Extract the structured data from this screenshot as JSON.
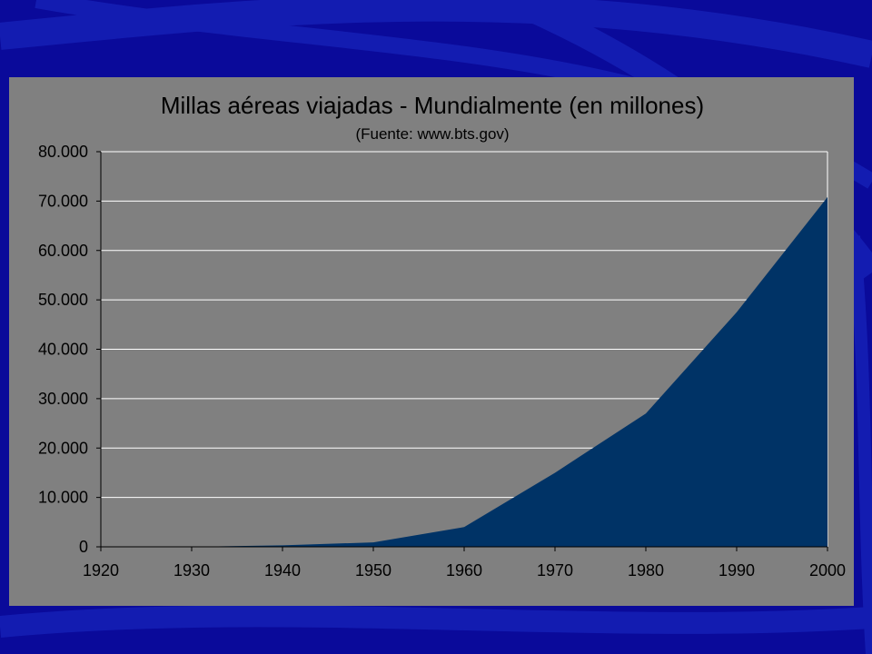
{
  "colors": {
    "background": "#0a0a9a",
    "background_streak": "#1c2cc4",
    "panel": "#808080",
    "area_fill": "#003366",
    "gridline": "#ffffff",
    "text": "#000000"
  },
  "chart_data": {
    "type": "area",
    "title": "Millas aéreas viajadas - Mundialmente (en millones)",
    "subtitle": "(Fuente: www.bts.gov)",
    "xlabel": "",
    "ylabel": "",
    "x": [
      1920,
      1930,
      1940,
      1950,
      1960,
      1970,
      1980,
      1990,
      2000
    ],
    "series": [
      {
        "values": [
          0,
          0,
          300,
          900,
          4000,
          15000,
          27000,
          47500,
          70800
        ]
      }
    ],
    "xlim": [
      1920,
      2000
    ],
    "ylim": [
      0,
      80000
    ],
    "x_ticks": [
      "1920",
      "1930",
      "1940",
      "1950",
      "1960",
      "1970",
      "1980",
      "1990",
      "2000"
    ],
    "y_ticks": [
      "0",
      "10.000",
      "20.000",
      "30.000",
      "40.000",
      "50.000",
      "60.000",
      "70.000",
      "80.000"
    ],
    "y_tick_values": [
      0,
      10000,
      20000,
      30000,
      40000,
      50000,
      60000,
      70000,
      80000
    ],
    "grid": true,
    "legend": "none"
  }
}
